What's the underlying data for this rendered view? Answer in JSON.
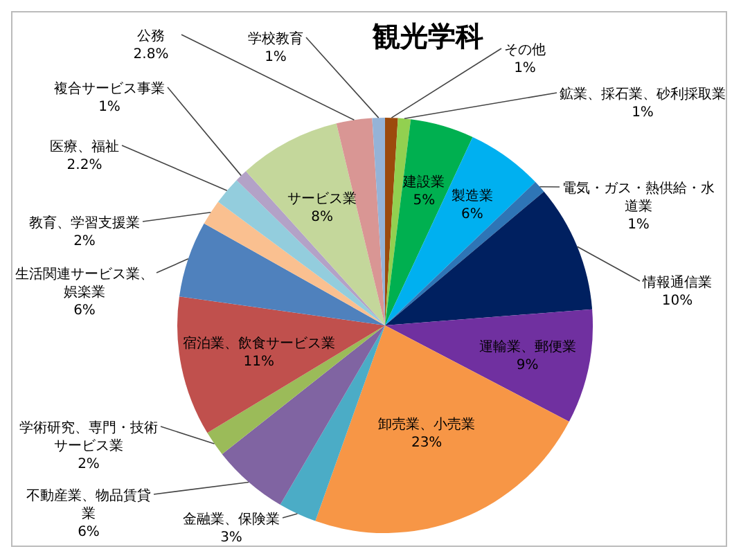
{
  "chart_data": {
    "type": "pie",
    "title": "観光学科",
    "categories": [
      "その他",
      "鉱業、採石業、砂利採取業",
      "建設業",
      "製造業",
      "電気・ガス・熱供給・水道業",
      "情報通信業",
      "運輸業、郵便業",
      "卸売業、小売業",
      "金融業、保険業",
      "不動産業、物品賃貸業",
      "学術研究、専門・技術サービス業",
      "宿泊業、飲食サービス業",
      "生活関連サービス業、娯楽業",
      "教育、学習支援業",
      "医療、福祉",
      "複合サービス事業",
      "サービス業",
      "公務",
      "学校教育"
    ],
    "values": [
      1,
      1,
      5,
      6,
      1,
      10,
      9,
      23,
      3,
      6,
      2,
      11,
      6,
      2,
      2.2,
      1,
      8,
      2.8,
      1
    ],
    "value_labels": [
      "1%",
      "1%",
      "5%",
      "6%",
      "1%",
      "10%",
      "9%",
      "23%",
      "3%",
      "6%",
      "2%",
      "11%",
      "6%",
      "2%",
      "2.2%",
      "1%",
      "8%",
      "2.8%",
      "1%"
    ],
    "colors": [
      "#9c4a0c",
      "#92d050",
      "#00b050",
      "#00b0f0",
      "#2e75b6",
      "#002060",
      "#7030a0",
      "#f79646",
      "#4bacc6",
      "#8064a2",
      "#9bbb59",
      "#c0504d",
      "#4f81bd",
      "#fac090",
      "#93cddd",
      "#b3a2c7",
      "#c4d79b",
      "#d99694",
      "#95b3d7"
    ]
  }
}
